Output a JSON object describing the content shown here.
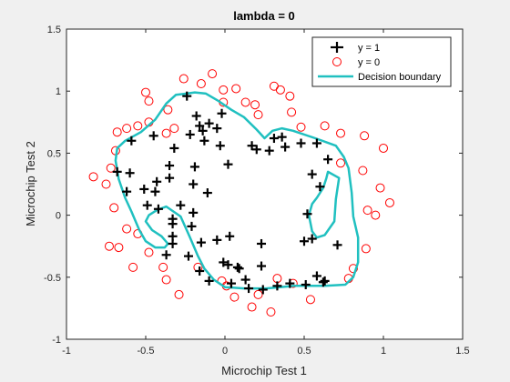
{
  "chart_data": {
    "type": "scatter",
    "title": "lambda = 0",
    "xlabel": "Microchip Test 1",
    "ylabel": "Microchip Test 2",
    "xlim": [
      -1,
      1.5
    ],
    "ylim": [
      -1,
      1.5
    ],
    "xticks": [
      "-1",
      "-0.5",
      "0",
      "0.5",
      "1",
      "1.5"
    ],
    "yticks": [
      "-1",
      "-0.5",
      "0",
      "0.5",
      "1",
      "1.5"
    ],
    "grid": false,
    "legend_position": "top-right",
    "series": [
      {
        "name": "y = 1",
        "marker": "+",
        "color": "#000000",
        "points": [
          [
            -0.59,
            0.6
          ],
          [
            -0.45,
            0.64
          ],
          [
            -0.35,
            0.4
          ],
          [
            -0.6,
            0.34
          ],
          [
            -0.68,
            0.35
          ],
          [
            -0.62,
            0.19
          ],
          [
            -0.51,
            0.21
          ],
          [
            -0.44,
            0.19
          ],
          [
            -0.43,
            0.27
          ],
          [
            -0.49,
            0.08
          ],
          [
            -0.42,
            0.05
          ],
          [
            -0.35,
            0.3
          ],
          [
            -0.2,
            0.25
          ],
          [
            -0.19,
            0.39
          ],
          [
            -0.32,
            0.54
          ],
          [
            -0.22,
            0.65
          ],
          [
            -0.16,
            0.72
          ],
          [
            -0.1,
            0.74
          ],
          [
            -0.18,
            0.8
          ],
          [
            -0.14,
            0.68
          ],
          [
            -0.13,
            0.6
          ],
          [
            -0.05,
            0.7
          ],
          [
            -0.03,
            0.56
          ],
          [
            -0.02,
            0.82
          ],
          [
            -0.24,
            0.96
          ],
          [
            0.02,
            0.41
          ],
          [
            0.17,
            0.56
          ],
          [
            0.2,
            0.53
          ],
          [
            0.28,
            0.52
          ],
          [
            0.31,
            0.62
          ],
          [
            0.38,
            0.55
          ],
          [
            0.36,
            0.63
          ],
          [
            0.48,
            0.58
          ],
          [
            0.58,
            0.58
          ],
          [
            0.65,
            0.45
          ],
          [
            0.6,
            0.23
          ],
          [
            0.55,
            0.33
          ],
          [
            0.52,
            0.01
          ],
          [
            -0.2,
            0.02
          ],
          [
            -0.11,
            0.18
          ],
          [
            -0.28,
            0.08
          ],
          [
            -0.33,
            -0.03
          ],
          [
            -0.33,
            -0.17
          ],
          [
            -0.33,
            -0.23
          ],
          [
            -0.21,
            -0.09
          ],
          [
            -0.15,
            -0.22
          ],
          [
            -0.05,
            -0.2
          ],
          [
            -0.01,
            -0.38
          ],
          [
            0.02,
            -0.4
          ],
          [
            0.08,
            -0.42
          ],
          [
            0.09,
            -0.43
          ],
          [
            0.13,
            -0.52
          ],
          [
            0.15,
            -0.59
          ],
          [
            0.23,
            -0.41
          ],
          [
            0.24,
            -0.6
          ],
          [
            0.33,
            -0.57
          ],
          [
            0.5,
            -0.21
          ],
          [
            0.55,
            -0.19
          ],
          [
            0.58,
            -0.49
          ],
          [
            0.62,
            -0.54
          ],
          [
            0.71,
            -0.24
          ],
          [
            0.63,
            -0.53
          ],
          [
            0.41,
            -0.55
          ],
          [
            0.03,
            -0.17
          ],
          [
            0.23,
            -0.23
          ],
          [
            -0.1,
            -0.53
          ],
          [
            -0.33,
            -0.07
          ],
          [
            -0.37,
            -0.32
          ],
          [
            -0.16,
            -0.45
          ],
          [
            -0.23,
            -0.33
          ],
          [
            0.51,
            -0.56
          ],
          [
            0.04,
            -0.55
          ]
        ]
      },
      {
        "name": "y = 0",
        "marker": "o",
        "color": "#ff0000",
        "points": [
          [
            -0.5,
            0.99
          ],
          [
            -0.48,
            0.92
          ],
          [
            -0.36,
            0.85
          ],
          [
            -0.32,
            0.7
          ],
          [
            -0.37,
            0.66
          ],
          [
            -0.48,
            0.75
          ],
          [
            -0.55,
            0.72
          ],
          [
            -0.68,
            0.67
          ],
          [
            -0.62,
            0.7
          ],
          [
            -0.69,
            0.52
          ],
          [
            -0.72,
            0.38
          ],
          [
            -0.75,
            0.25
          ],
          [
            -0.83,
            0.31
          ],
          [
            -0.7,
            0.06
          ],
          [
            -0.62,
            -0.11
          ],
          [
            -0.55,
            -0.15
          ],
          [
            -0.67,
            -0.26
          ],
          [
            -0.73,
            -0.25
          ],
          [
            -0.58,
            -0.42
          ],
          [
            -0.48,
            -0.3
          ],
          [
            -0.39,
            -0.42
          ],
          [
            -0.37,
            -0.52
          ],
          [
            -0.29,
            -0.64
          ],
          [
            -0.17,
            -0.42
          ],
          [
            -0.02,
            -0.53
          ],
          [
            0.01,
            -0.57
          ],
          [
            0.06,
            -0.66
          ],
          [
            0.17,
            -0.74
          ],
          [
            0.21,
            -0.64
          ],
          [
            0.29,
            -0.78
          ],
          [
            0.33,
            -0.51
          ],
          [
            0.43,
            -0.55
          ],
          [
            0.54,
            -0.68
          ],
          [
            0.78,
            -0.51
          ],
          [
            0.81,
            -0.43
          ],
          [
            0.89,
            -0.27
          ],
          [
            0.95,
            0.0
          ],
          [
            0.98,
            0.22
          ],
          [
            1.04,
            0.1
          ],
          [
            0.9,
            0.04
          ],
          [
            0.87,
            0.36
          ],
          [
            0.73,
            0.42
          ],
          [
            0.73,
            0.66
          ],
          [
            0.63,
            0.72
          ],
          [
            0.48,
            0.71
          ],
          [
            0.42,
            0.83
          ],
          [
            0.41,
            0.96
          ],
          [
            0.31,
            1.04
          ],
          [
            0.21,
            0.81
          ],
          [
            0.13,
            0.91
          ],
          [
            -0.01,
            0.91
          ],
          [
            -0.01,
            1.01
          ],
          [
            0.07,
            1.02
          ],
          [
            -0.15,
            1.06
          ],
          [
            -0.08,
            1.14
          ],
          [
            -0.26,
            1.1
          ],
          [
            0.19,
            0.89
          ],
          [
            0.35,
            1.01
          ],
          [
            0.88,
            0.64
          ],
          [
            1.0,
            0.54
          ]
        ]
      },
      {
        "name": "Decision boundary",
        "marker": "line",
        "color": "#20c0c0",
        "line": [
          [
            -0.24,
            0.98
          ],
          [
            -0.31,
            0.97
          ],
          [
            -0.37,
            0.9
          ],
          [
            -0.44,
            0.77
          ],
          [
            -0.53,
            0.67
          ],
          [
            -0.63,
            0.6
          ],
          [
            -0.68,
            0.54
          ],
          [
            -0.69,
            0.44
          ],
          [
            -0.67,
            0.29
          ],
          [
            -0.63,
            0.14
          ],
          [
            -0.59,
            0.03
          ],
          [
            -0.57,
            -0.03
          ],
          [
            -0.54,
            -0.12
          ],
          [
            -0.5,
            -0.21
          ],
          [
            -0.44,
            -0.26
          ],
          [
            -0.38,
            -0.26
          ],
          [
            -0.36,
            -0.23
          ],
          [
            -0.4,
            -0.17
          ],
          [
            -0.46,
            -0.12
          ],
          [
            -0.5,
            -0.05
          ],
          [
            -0.48,
            0.0
          ],
          [
            -0.43,
            0.04
          ],
          [
            -0.37,
            0.07
          ],
          [
            -0.28,
            -0.01
          ],
          [
            -0.22,
            -0.18
          ],
          [
            -0.17,
            -0.33
          ],
          [
            -0.13,
            -0.43
          ],
          [
            -0.07,
            -0.52
          ],
          [
            0.0,
            -0.58
          ],
          [
            0.12,
            -0.59
          ],
          [
            0.26,
            -0.59
          ],
          [
            0.44,
            -0.57
          ],
          [
            0.63,
            -0.57
          ],
          [
            0.76,
            -0.56
          ],
          [
            0.81,
            -0.5
          ],
          [
            0.84,
            -0.38
          ],
          [
            0.84,
            -0.18
          ],
          [
            0.81,
            -0.01
          ],
          [
            0.8,
            0.18
          ],
          [
            0.78,
            0.38
          ],
          [
            0.75,
            0.47
          ],
          [
            0.7,
            0.56
          ],
          [
            0.57,
            0.62
          ],
          [
            0.43,
            0.68
          ],
          [
            0.36,
            0.7
          ],
          [
            0.3,
            0.68
          ],
          [
            0.25,
            0.62
          ],
          [
            0.2,
            0.69
          ],
          [
            0.12,
            0.79
          ],
          [
            0.04,
            0.85
          ],
          [
            -0.04,
            0.92
          ],
          [
            -0.12,
            0.98
          ],
          [
            -0.19,
            0.99
          ],
          [
            -0.24,
            0.98
          ]
        ],
        "island": [
          [
            0.65,
            0.35
          ],
          [
            0.72,
            0.3
          ],
          [
            0.7,
            0.13
          ],
          [
            0.69,
            -0.05
          ],
          [
            0.63,
            -0.16
          ],
          [
            0.58,
            -0.18
          ],
          [
            0.55,
            -0.13
          ],
          [
            0.53,
            0.0
          ],
          [
            0.55,
            0.09
          ],
          [
            0.58,
            0.14
          ],
          [
            0.62,
            0.22
          ],
          [
            0.64,
            0.3
          ],
          [
            0.65,
            0.35
          ]
        ]
      }
    ]
  }
}
